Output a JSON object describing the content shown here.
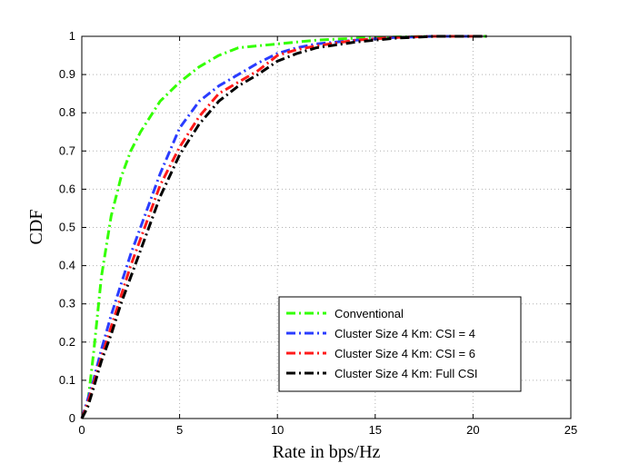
{
  "chart_data": {
    "type": "line",
    "title": "",
    "xlabel": "Rate in bps/Hz",
    "ylabel": "CDF",
    "xlim": [
      0,
      25
    ],
    "ylim": [
      0,
      1
    ],
    "xticks": [
      0,
      5,
      10,
      15,
      20,
      25
    ],
    "yticks": [
      0,
      0.1,
      0.2,
      0.3,
      0.4,
      0.5,
      0.6,
      0.7,
      0.8,
      0.9,
      1
    ],
    "grid": true,
    "legend_position": "bottom-right",
    "series": [
      {
        "name": "Conventional",
        "color": "#33ff00",
        "x": [
          0,
          0.3,
          0.6,
          1.0,
          1.5,
          2.0,
          2.5,
          3.0,
          4.0,
          5.0,
          6.0,
          7.0,
          8.0,
          9.0,
          10.0,
          11.0,
          12.0,
          14.0,
          16.0,
          18.0,
          20.7
        ],
        "y": [
          0,
          0.04,
          0.17,
          0.37,
          0.53,
          0.63,
          0.7,
          0.75,
          0.83,
          0.88,
          0.92,
          0.95,
          0.97,
          0.975,
          0.98,
          0.985,
          0.99,
          0.995,
          0.998,
          1.0,
          1.0
        ]
      },
      {
        "name": "Cluster Size 4 Km: CSI = 4",
        "color": "#2a3cff",
        "x": [
          0,
          0.3,
          0.6,
          1.0,
          1.5,
          2.0,
          2.5,
          3.0,
          4.0,
          5.0,
          6.0,
          7.0,
          8.0,
          9.0,
          10.0,
          11.0,
          12.0,
          14.0,
          16.0,
          18.0,
          20.5
        ],
        "y": [
          0,
          0.05,
          0.1,
          0.18,
          0.27,
          0.35,
          0.43,
          0.5,
          0.64,
          0.76,
          0.83,
          0.87,
          0.9,
          0.93,
          0.955,
          0.97,
          0.98,
          0.99,
          0.997,
          1.0,
          1.0
        ]
      },
      {
        "name": "Cluster Size 4 Km: CSI = 6",
        "color": "#ff1a1a",
        "x": [
          0,
          0.3,
          0.6,
          1.0,
          1.5,
          2.0,
          2.5,
          3.0,
          4.0,
          5.0,
          6.0,
          7.0,
          8.0,
          9.0,
          10.0,
          11.0,
          12.0,
          14.0,
          16.0,
          18.0,
          20.5
        ],
        "y": [
          0,
          0.04,
          0.09,
          0.16,
          0.24,
          0.32,
          0.4,
          0.47,
          0.61,
          0.71,
          0.79,
          0.85,
          0.88,
          0.91,
          0.95,
          0.965,
          0.975,
          0.99,
          0.997,
          1.0,
          1.0
        ]
      },
      {
        "name": "Cluster Size 4 Km: Full CSI",
        "color": "#000000",
        "x": [
          0,
          0.3,
          0.6,
          1.0,
          1.5,
          2.0,
          2.5,
          3.0,
          4.0,
          5.0,
          6.0,
          7.0,
          8.0,
          9.0,
          10.0,
          11.0,
          12.0,
          14.0,
          16.0,
          18.0,
          20.7
        ],
        "y": [
          0,
          0.03,
          0.08,
          0.15,
          0.22,
          0.3,
          0.37,
          0.44,
          0.58,
          0.69,
          0.77,
          0.83,
          0.87,
          0.9,
          0.935,
          0.955,
          0.97,
          0.985,
          0.995,
          1.0,
          1.0
        ]
      }
    ]
  }
}
